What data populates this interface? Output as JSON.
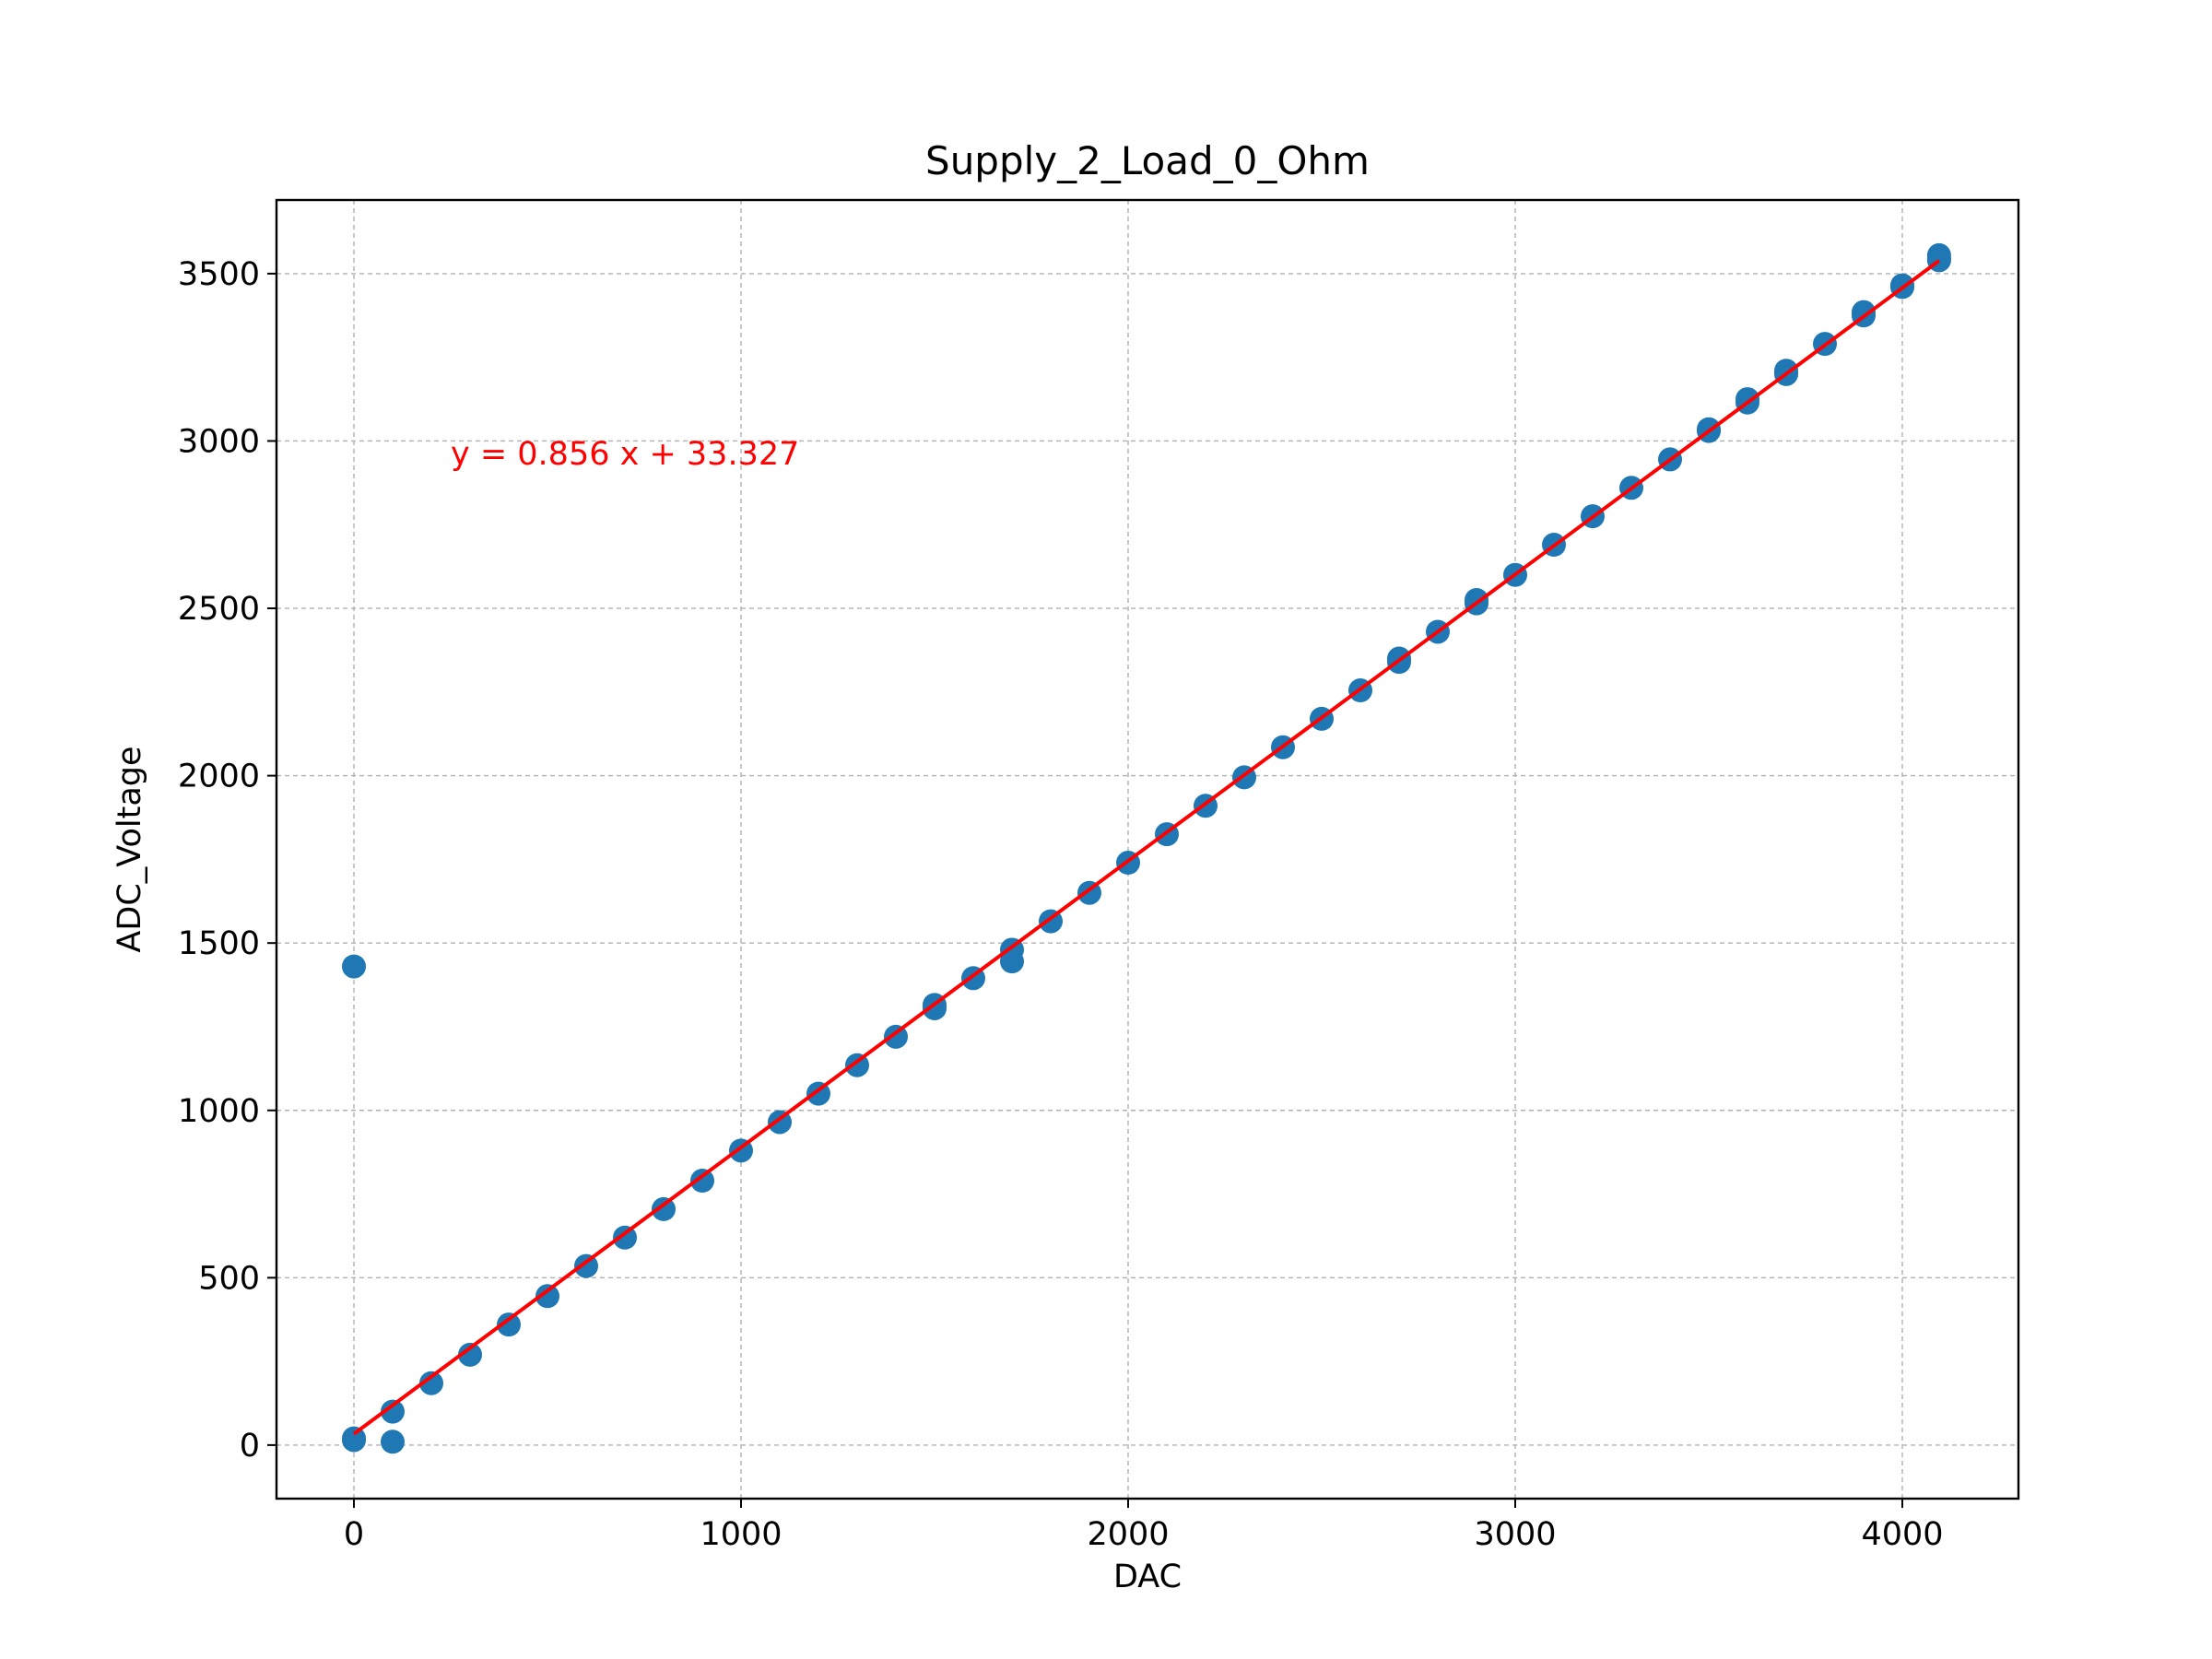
{
  "chart_data": {
    "type": "scatter",
    "title": "Supply_2_Load_0_Ohm",
    "xlabel": "DAC",
    "ylabel": "ADC_Voltage",
    "xlim": [
      -200,
      4300
    ],
    "ylim": [
      -160,
      3720
    ],
    "xticks": [
      0,
      1000,
      2000,
      3000,
      4000
    ],
    "yticks": [
      0,
      500,
      1000,
      1500,
      2000,
      2500,
      3000,
      3500
    ],
    "grid": true,
    "colors": {
      "points": "#1f77b4",
      "fit": "#ff0000",
      "grid": "#b0b0b0"
    },
    "series": [
      {
        "points": [
          [
            0,
            1430
          ],
          [
            0,
            20
          ],
          [
            0,
            15
          ],
          [
            100,
            100
          ],
          [
            100,
            10
          ],
          [
            200,
            185
          ],
          [
            300,
            270
          ],
          [
            400,
            360
          ],
          [
            500,
            445
          ],
          [
            600,
            535
          ],
          [
            700,
            620
          ],
          [
            800,
            705
          ],
          [
            900,
            790
          ],
          [
            1000,
            880
          ],
          [
            1100,
            965
          ],
          [
            1200,
            1050
          ],
          [
            1300,
            1135
          ],
          [
            1400,
            1220
          ],
          [
            1500,
            1305
          ],
          [
            1500,
            1315
          ],
          [
            1600,
            1395
          ],
          [
            1700,
            1480
          ],
          [
            1700,
            1445
          ],
          [
            1800,
            1565
          ],
          [
            1900,
            1650
          ],
          [
            2000,
            1740
          ],
          [
            2100,
            1825
          ],
          [
            2200,
            1910
          ],
          [
            2300,
            1995
          ],
          [
            2400,
            2085
          ],
          [
            2500,
            2170
          ],
          [
            2600,
            2255
          ],
          [
            2700,
            2340
          ],
          [
            2700,
            2350
          ],
          [
            2800,
            2430
          ],
          [
            2900,
            2515
          ],
          [
            2900,
            2525
          ],
          [
            3000,
            2600
          ],
          [
            3100,
            2690
          ],
          [
            3200,
            2775
          ],
          [
            3300,
            2860
          ],
          [
            3400,
            2945
          ],
          [
            3500,
            3030
          ],
          [
            3500,
            3035
          ],
          [
            3600,
            3115
          ],
          [
            3600,
            3125
          ],
          [
            3700,
            3200
          ],
          [
            3700,
            3210
          ],
          [
            3800,
            3290
          ],
          [
            3900,
            3375
          ],
          [
            3900,
            3385
          ],
          [
            4000,
            3460
          ],
          [
            4000,
            3465
          ],
          [
            4095,
            3545
          ],
          [
            4095,
            3555
          ],
          [
            4095,
            3540
          ]
        ]
      }
    ],
    "fit_line": {
      "slope": 0.856,
      "intercept": 33.327,
      "x_range": [
        0,
        4095
      ]
    },
    "annotation": {
      "text": "y = 0.856 x + 33.327",
      "x": 250,
      "y": 2930
    }
  }
}
